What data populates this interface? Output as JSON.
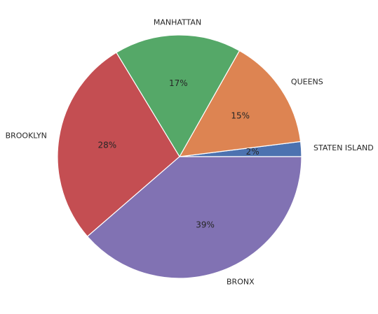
{
  "chart_data": {
    "type": "pie",
    "title": "",
    "categories": [
      "STATEN ISLAND",
      "QUEENS",
      "MANHATTAN",
      "BROOKLYN",
      "BRONX"
    ],
    "values": [
      2,
      15,
      17,
      28,
      39
    ],
    "percent_labels": [
      "2%",
      "15%",
      "17%",
      "28%",
      "39%"
    ],
    "colors": [
      "#4c72b0",
      "#dd8452",
      "#55a868",
      "#c44e52",
      "#8172b3"
    ],
    "start_angle_deg": 0,
    "direction": "counterclockwise",
    "legend": "none"
  }
}
